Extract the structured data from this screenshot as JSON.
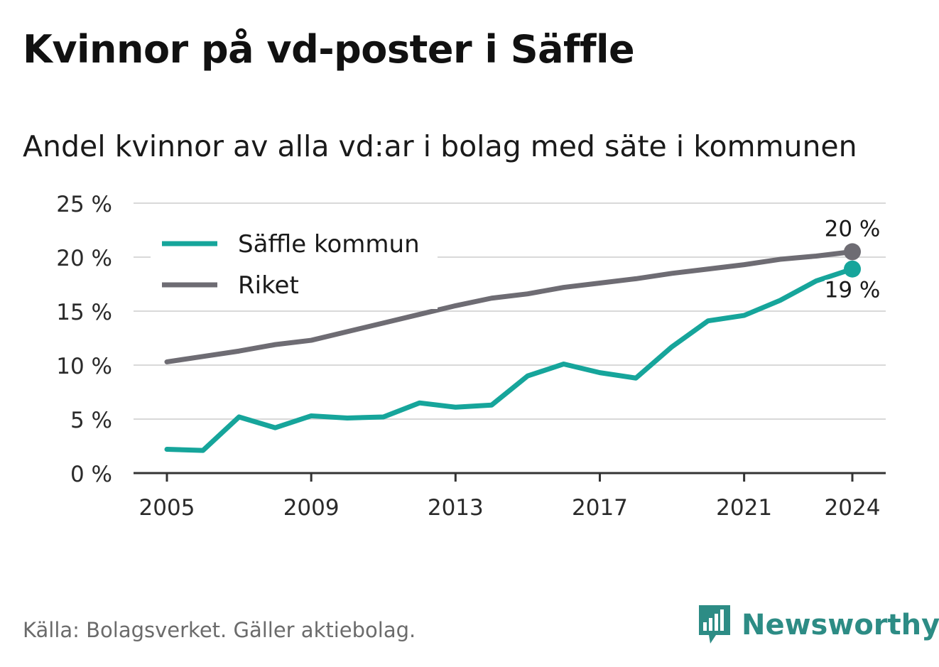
{
  "title": "Kvinnor på vd-poster i Säffle",
  "subtitle": "Andel kvinnor av alla vd:ar i bolag med säte i kommunen",
  "footer": "Källa: Bolagsverket. Gäller aktiebolag.",
  "brand": "Newsworthy",
  "colors": {
    "saffle": "#16a59b",
    "riket": "#6e6c73",
    "brand": "#2d8c85"
  },
  "chart_data": {
    "type": "line",
    "x": [
      2005,
      2006,
      2007,
      2008,
      2009,
      2010,
      2011,
      2012,
      2013,
      2014,
      2015,
      2016,
      2017,
      2018,
      2019,
      2020,
      2021,
      2022,
      2023,
      2024
    ],
    "xticks": [
      "2005",
      "2009",
      "2013",
      "2017",
      "2021",
      "2024"
    ],
    "yticks": [
      "0 %",
      "5 %",
      "10 %",
      "15 %",
      "20 %",
      "25 %"
    ],
    "ylim": [
      0,
      25
    ],
    "grid": true,
    "legend": "top-left",
    "series": [
      {
        "name": "Säffle kommun",
        "color": "#16a59b",
        "values": [
          2.2,
          2.1,
          5.2,
          4.2,
          5.3,
          5.1,
          5.2,
          6.5,
          6.1,
          6.3,
          9.0,
          10.1,
          9.3,
          8.8,
          11.7,
          14.1,
          14.6,
          16.0,
          17.8,
          18.9
        ],
        "end_label": "19 %"
      },
      {
        "name": "Riket",
        "color": "#6e6c73",
        "values": [
          10.3,
          10.8,
          11.3,
          11.9,
          12.3,
          13.1,
          13.9,
          14.7,
          15.5,
          16.2,
          16.6,
          17.2,
          17.6,
          18.0,
          18.5,
          18.9,
          19.3,
          19.8,
          20.1,
          20.5
        ],
        "end_label": "20 %"
      }
    ]
  }
}
